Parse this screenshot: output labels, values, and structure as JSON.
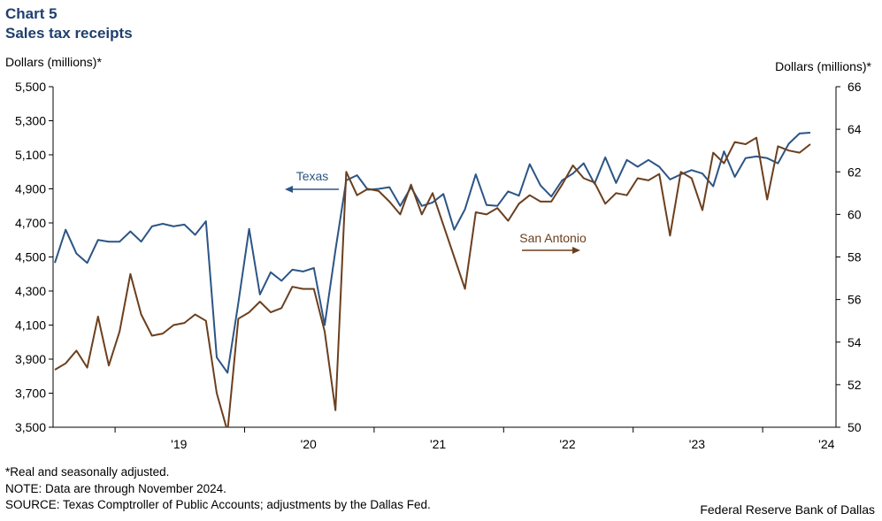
{
  "header": {
    "chart_number": "Chart 5",
    "title": "Sales tax receipts"
  },
  "notes": {
    "line1": "*Real and seasonally adjusted.",
    "line2": "NOTE: Data are through November 2024.",
    "line3": "SOURCE: Texas Comptroller of Public Accounts; adjustments by the Dallas Fed."
  },
  "credit": "Federal Reserve Bank of Dallas",
  "colors": {
    "texas": "#2c5585",
    "san_antonio": "#6b3f1e"
  },
  "chart_data": {
    "type": "line",
    "x_start": "2018-07",
    "x_end": "2024-11",
    "frequency": "monthly",
    "xtick_labels": [
      "'19",
      "'20",
      "'21",
      "'22",
      "'23",
      "'24"
    ],
    "left_axis": {
      "label": "Dollars (millions)*",
      "ylim": [
        3500,
        5500
      ],
      "ticks": [
        "3,500",
        "3,700",
        "3,900",
        "4,100",
        "4,300",
        "4,500",
        "4,700",
        "4,900",
        "5,100",
        "5,300",
        "5,500"
      ]
    },
    "right_axis": {
      "label": "Dollars (millions)*",
      "ylim": [
        50,
        66
      ],
      "ticks": [
        "50",
        "52",
        "54",
        "56",
        "58",
        "60",
        "62",
        "64",
        "66"
      ]
    },
    "grid": false,
    "series": [
      {
        "name": "Texas",
        "axis": "left",
        "values": [
          4465,
          4660,
          4520,
          4465,
          4600,
          4590,
          4590,
          4650,
          4590,
          4680,
          4695,
          4680,
          4690,
          4630,
          4710,
          3910,
          3820,
          4230,
          4665,
          4280,
          4410,
          4360,
          4425,
          4415,
          4435,
          4100,
          4540,
          4950,
          4980,
          4895,
          4900,
          4910,
          4800,
          4910,
          4800,
          4820,
          4870,
          4660,
          4780,
          4985,
          4805,
          4800,
          4885,
          4860,
          5045,
          4920,
          4855,
          4950,
          4990,
          5050,
          4930,
          5085,
          4935,
          5070,
          5030,
          5070,
          5030,
          4955,
          4985,
          5010,
          4990,
          4915,
          5120,
          4970,
          5080,
          5090,
          5080,
          5050,
          5165,
          5225,
          5230
        ]
      },
      {
        "name": "San Antonio",
        "axis": "right",
        "values": [
          52.7,
          53.0,
          53.6,
          52.8,
          55.2,
          52.9,
          54.5,
          57.2,
          55.3,
          54.3,
          54.4,
          54.8,
          54.9,
          55.3,
          55.0,
          51.6,
          49.8,
          55.1,
          55.4,
          55.9,
          55.4,
          55.6,
          56.6,
          56.5,
          56.5,
          54.5,
          50.8,
          62.0,
          60.9,
          61.2,
          61.1,
          60.6,
          60.0,
          61.4,
          60.0,
          61.0,
          59.5,
          58.0,
          56.5,
          60.1,
          60.0,
          60.3,
          59.7,
          60.5,
          60.9,
          60.6,
          60.6,
          61.4,
          62.3,
          61.7,
          61.5,
          60.5,
          61.0,
          60.9,
          61.7,
          61.6,
          61.9,
          59.0,
          62.0,
          61.7,
          60.2,
          62.9,
          62.4,
          63.4,
          63.3,
          63.6,
          60.7,
          63.2,
          63.0,
          62.9,
          63.3
        ]
      }
    ],
    "annotations": [
      {
        "text": "Texas",
        "arrow": "left"
      },
      {
        "text": "San Antonio",
        "arrow": "right"
      }
    ]
  }
}
